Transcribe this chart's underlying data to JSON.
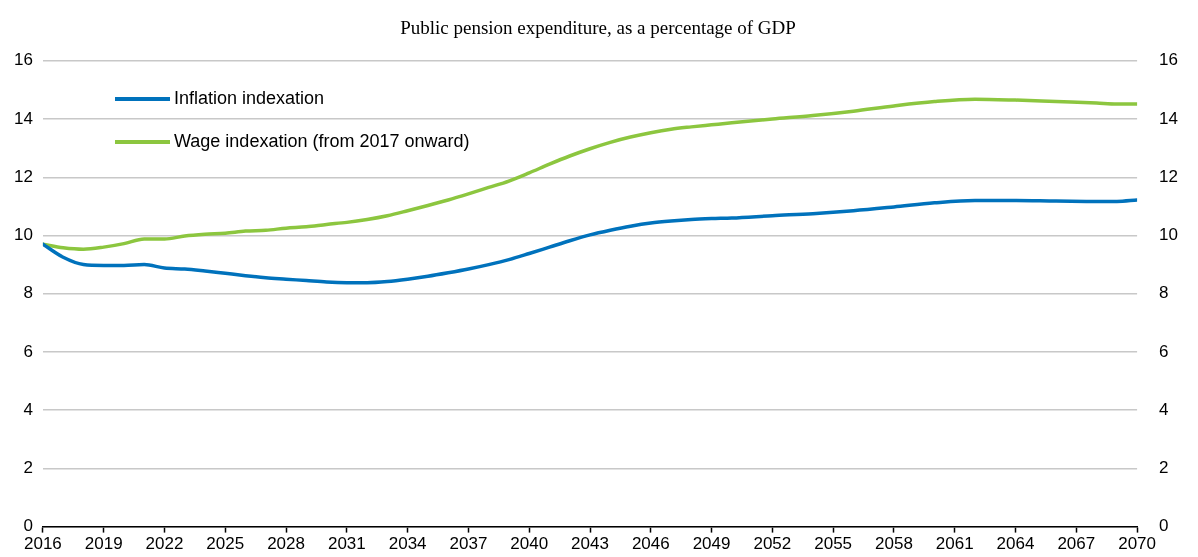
{
  "chart_data": {
    "type": "line",
    "title": "Public pension expenditure, as a percentage of GDP",
    "xlim": [
      2016,
      2070
    ],
    "xticks": [
      2016,
      2019,
      2022,
      2025,
      2028,
      2031,
      2034,
      2037,
      2040,
      2043,
      2046,
      2049,
      2052,
      2055,
      2058,
      2061,
      2064,
      2067,
      2070
    ],
    "ylim": [
      0,
      16
    ],
    "yticks": [
      0,
      2,
      4,
      6,
      8,
      10,
      12,
      14,
      16
    ],
    "y2lim": [
      0,
      16
    ],
    "y2ticks": [
      0,
      2,
      4,
      6,
      8,
      10,
      12,
      14,
      16
    ],
    "grid": "y",
    "legend": "top left",
    "marker": "none",
    "line_style": "solid",
    "x": [
      2016,
      2017,
      2018,
      2019,
      2020,
      2021,
      2022,
      2023,
      2024,
      2025,
      2026,
      2027,
      2028,
      2029,
      2030,
      2031,
      2032,
      2033,
      2034,
      2035,
      2036,
      2037,
      2038,
      2039,
      2040,
      2041,
      2042,
      2043,
      2044,
      2045,
      2046,
      2047,
      2048,
      2049,
      2050,
      2052,
      2054,
      2056,
      2058,
      2060,
      2062,
      2064,
      2066,
      2068,
      2069,
      2070
    ],
    "series": [
      {
        "name": "Inflation indexation",
        "color": "#0072bc",
        "values": [
          9.7,
          9.25,
          9.0,
          8.97,
          8.97,
          9.0,
          8.88,
          8.85,
          8.78,
          8.7,
          8.62,
          8.55,
          8.5,
          8.45,
          8.4,
          8.38,
          8.38,
          8.42,
          8.5,
          8.6,
          8.72,
          8.85,
          9.0,
          9.17,
          9.38,
          9.6,
          9.82,
          10.02,
          10.18,
          10.32,
          10.43,
          10.5,
          10.55,
          10.58,
          10.6,
          10.68,
          10.75,
          10.85,
          10.98,
          11.12,
          11.2,
          11.2,
          11.18,
          11.17,
          11.17,
          11.22
        ]
      },
      {
        "name": "Wage indexation (from 2017 onward)",
        "color": "#8cc63f",
        "values": [
          9.7,
          9.58,
          9.53,
          9.6,
          9.72,
          9.88,
          9.88,
          9.98,
          10.04,
          10.08,
          10.15,
          10.18,
          10.25,
          10.3,
          10.38,
          10.45,
          10.55,
          10.68,
          10.85,
          11.03,
          11.22,
          11.43,
          11.65,
          11.87,
          12.15,
          12.45,
          12.73,
          12.98,
          13.2,
          13.38,
          13.53,
          13.65,
          13.73,
          13.8,
          13.87,
          14.0,
          14.12,
          14.27,
          14.45,
          14.6,
          14.68,
          14.65,
          14.6,
          14.55,
          14.52,
          14.52
        ]
      }
    ]
  }
}
